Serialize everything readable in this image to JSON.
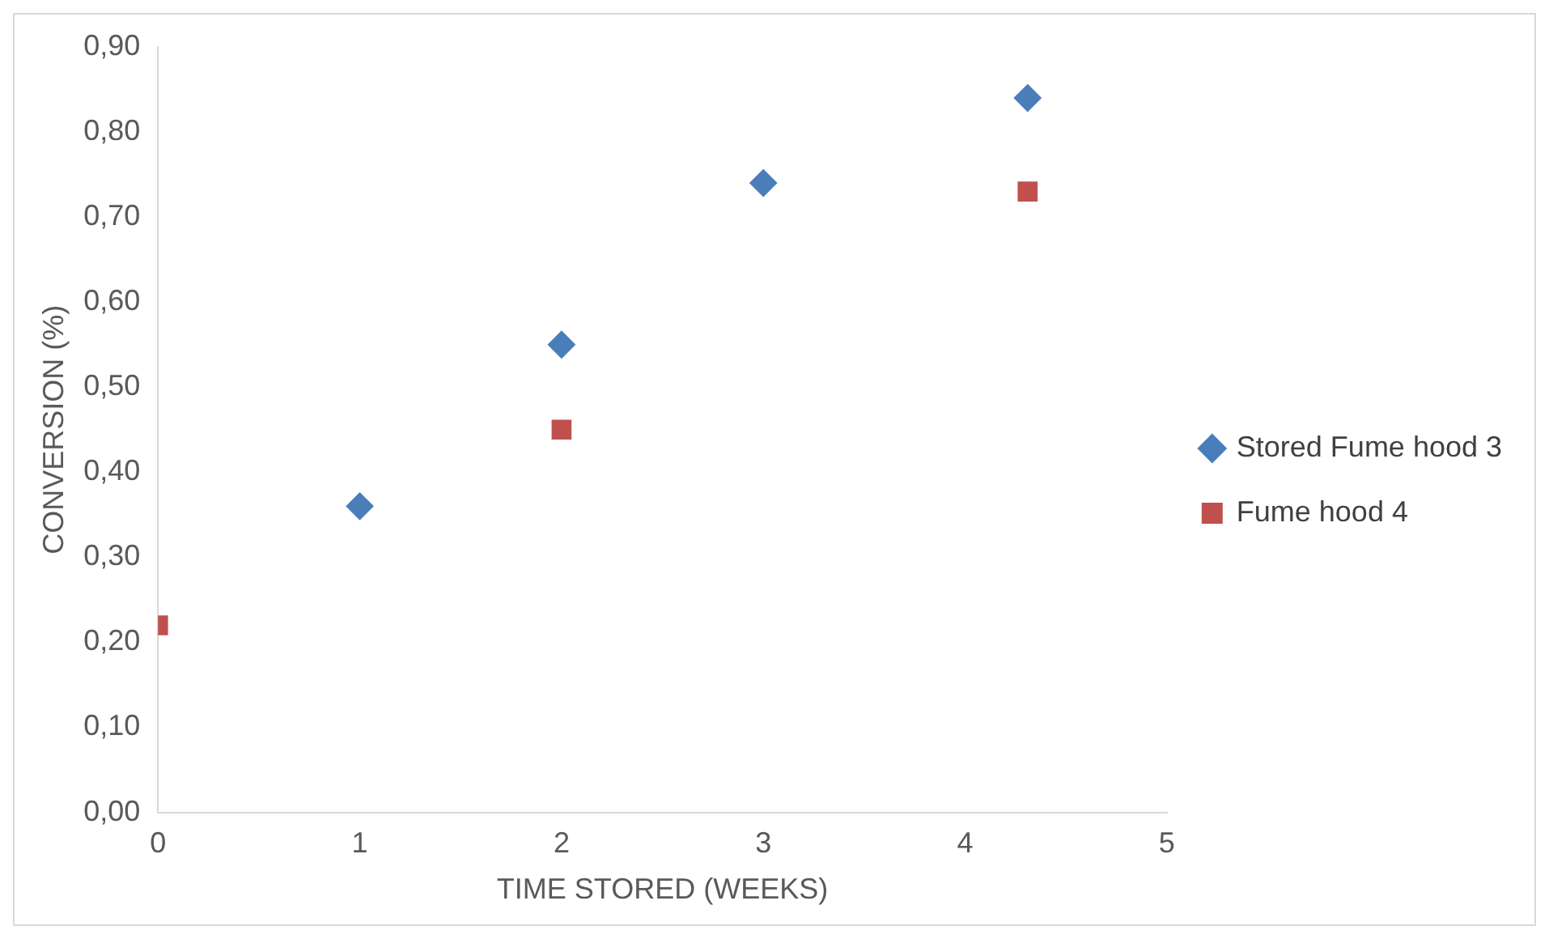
{
  "chart_data": {
    "type": "scatter",
    "xlabel": "TIME STORED (WEEKS)",
    "ylabel": "CONVERSION (%)",
    "xlim": [
      0,
      5
    ],
    "xticks": [
      0,
      1,
      2,
      3,
      4,
      5
    ],
    "ylim": [
      0,
      0.9
    ],
    "yticks": [
      {
        "value": 0,
        "label": "0,00"
      },
      {
        "value": 0.1,
        "label": "0,10"
      },
      {
        "value": 0.2,
        "label": "0,20"
      },
      {
        "value": 0.3,
        "label": "0,30"
      },
      {
        "value": 0.4,
        "label": "0,40"
      },
      {
        "value": 0.5,
        "label": "0,50"
      },
      {
        "value": 0.6,
        "label": "0,60"
      },
      {
        "value": 0.7,
        "label": "0,70"
      },
      {
        "value": 0.8,
        "label": "0,80"
      },
      {
        "value": 0.9,
        "label": "0,90"
      }
    ],
    "grid": false,
    "legend": "right",
    "series": [
      {
        "name": "Stored Fume hood 3",
        "color": "#4a7ebb",
        "marker": "diamond",
        "x": [
          1,
          2,
          3,
          4.31
        ],
        "values": [
          0.36,
          0.55,
          0.74,
          0.84
        ]
      },
      {
        "name": "Fume hood 4",
        "color": "#c0504d",
        "marker": "square",
        "x": [
          0,
          2,
          4.31
        ],
        "values": [
          0.22,
          0.45,
          0.73
        ]
      }
    ]
  }
}
